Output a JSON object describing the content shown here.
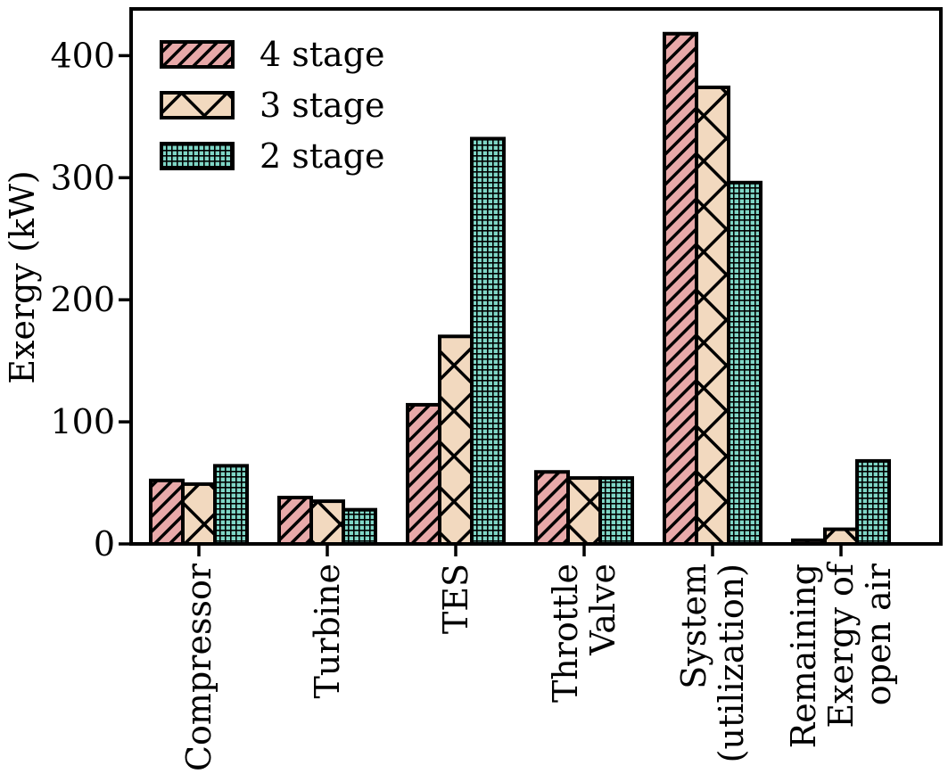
{
  "chart_data": {
    "type": "bar",
    "title": "",
    "xlabel": "",
    "ylabel": "Exergy (kW)",
    "ylim": [
      0,
      440
    ],
    "yticks": [
      0,
      100,
      200,
      300,
      400
    ],
    "grid": false,
    "legend_position": "top-left",
    "categories": [
      [
        "Compressor"
      ],
      [
        "Turbine"
      ],
      [
        "TES"
      ],
      [
        "Throttle",
        "Valve"
      ],
      [
        "System",
        "(utilization)"
      ],
      [
        "Remaining",
        "Exergy of",
        "open air"
      ]
    ],
    "series": [
      {
        "name": "4 stage",
        "values": [
          52,
          38,
          114,
          59,
          418,
          3
        ],
        "color": "#e8a9a9",
        "pattern": "diagonal-hatch"
      },
      {
        "name": "3 stage",
        "values": [
          49,
          35,
          170,
          54,
          374,
          12
        ],
        "color": "#f2d9bf",
        "pattern": "cross-hatch"
      },
      {
        "name": "2 stage",
        "values": [
          64,
          28,
          332,
          54,
          296,
          68
        ],
        "color": "#7fd6c6",
        "pattern": "dotted-grid"
      }
    ]
  }
}
